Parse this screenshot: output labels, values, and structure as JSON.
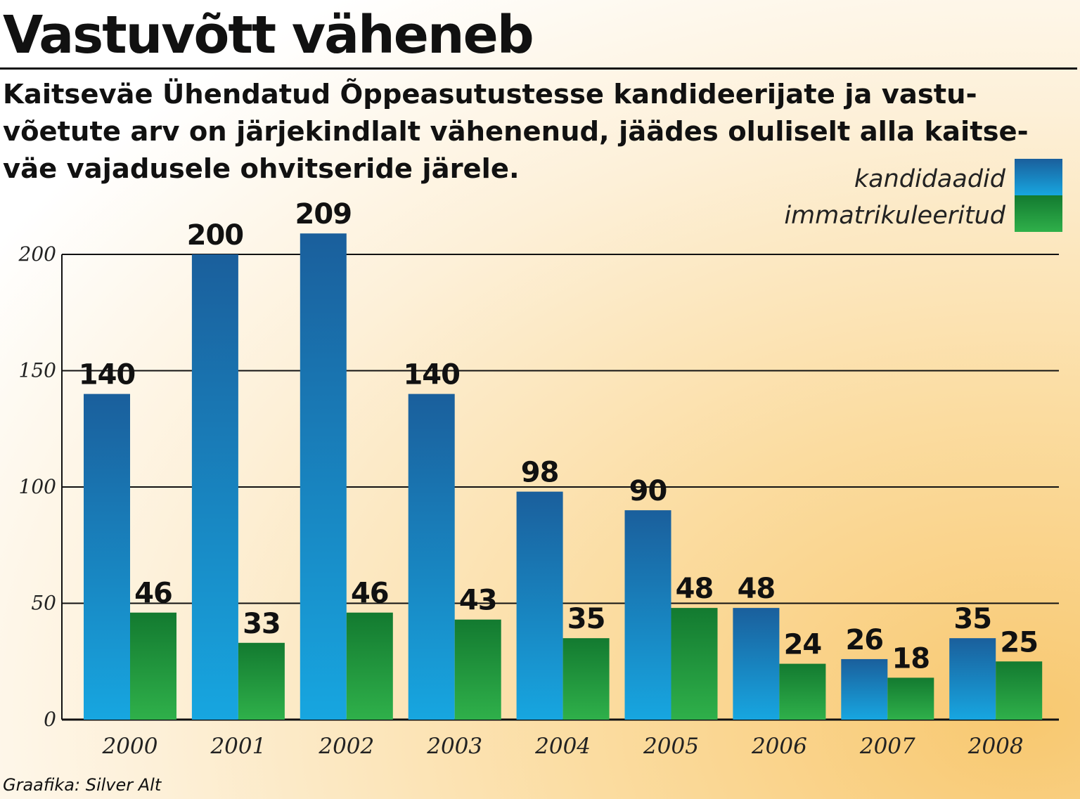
{
  "chart_data": {
    "type": "bar",
    "title": "Vastuvõtt väheneb",
    "subtitle": [
      "Kaitseväe Ühendatud Õppeasutustesse kandideerijate ja vastu-",
      "võetute arv on järjekindlalt vähenenud, jäädes oluliselt alla kaitse-",
      "väe vajadusele ohvitseride järele."
    ],
    "categories": [
      "2000",
      "2001",
      "2002",
      "2003",
      "2004",
      "2005",
      "2006",
      "2007",
      "2008"
    ],
    "series": [
      {
        "name": "kandidaadid",
        "values": [
          140,
          200,
          209,
          140,
          98,
          90,
          48,
          26,
          35
        ],
        "color": "#1e6fb0"
      },
      {
        "name": "immatrikuleeritud",
        "values": [
          46,
          33,
          46,
          43,
          35,
          48,
          24,
          18,
          25
        ],
        "color": "#1a8a3a"
      }
    ],
    "yticks": [
      0,
      50,
      100,
      150,
      200
    ],
    "ylim": [
      0,
      209
    ],
    "grid": true,
    "legend_position": "top-right",
    "credit": "Graafika: Silver Alt"
  }
}
